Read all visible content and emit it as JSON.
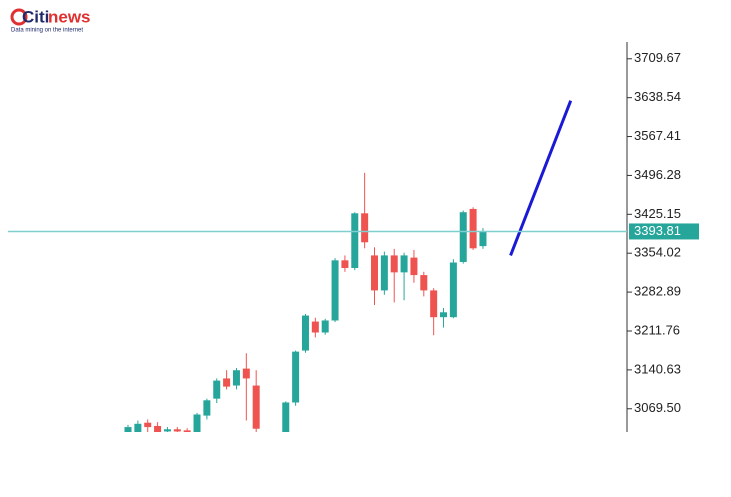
{
  "logo": {
    "brand": "Citi",
    "suffix": "news",
    "tagline": "Data mining on the internet"
  },
  "chart_data": {
    "type": "candlestick",
    "open": [
      3020,
      3025,
      3044,
      3038,
      3028,
      3032,
      3030,
      3020,
      3057,
      3088,
      3125,
      3112,
      3143,
      3112,
      null,
      null,
      3026,
      3081,
      3176,
      3229,
      3209,
      3231,
      3341,
      3327,
      3427,
      3350,
      3286,
      3350,
      3319,
      3346,
      3314,
      3286,
      3237,
      3237,
      3338,
      3435,
      3367
    ],
    "high": [
      3040,
      3048,
      3050,
      3045,
      3036,
      3036,
      3034,
      3062,
      3088,
      3125,
      3140,
      3144,
      3171,
      3140,
      null,
      null,
      3083,
      3176,
      3243,
      3236,
      3234,
      3345,
      3350,
      3429,
      3501,
      3365,
      3357,
      3362,
      3355,
      3360,
      3320,
      3290,
      3254,
      3343,
      3432,
      3438,
      3400
    ],
    "low": [
      3010,
      3015,
      3020,
      3010,
      3020,
      3015,
      3010,
      3010,
      3050,
      3080,
      3105,
      3105,
      3048,
      3026,
      null,
      null,
      3020,
      3075,
      3172,
      3200,
      3205,
      3228,
      3320,
      3323,
      3363,
      3259,
      3278,
      3264,
      3268,
      3300,
      3275,
      3204,
      3218,
      3235,
      3335,
      3360,
      3362
    ],
    "close": [
      3036,
      3042,
      3036,
      3025,
      3032,
      3028,
      3026,
      3059,
      3085,
      3121,
      3110,
      3140,
      3125,
      3033,
      null,
      null,
      3081,
      3174,
      3240,
      3209,
      3231,
      3341,
      3327,
      3427,
      3374,
      3286,
      3350,
      3319,
      3350,
      3314,
      3286,
      3237,
      3246,
      3337,
      3429,
      3363,
      3393.81
    ],
    "up_color": "#26a69a",
    "down_color": "#ef5350",
    "current_price": 3393.81,
    "current_price_color": "#26a69a",
    "trend_line": {
      "x": [
        38.8,
        44.9
      ],
      "values": [
        3350,
        3633
      ],
      "color": "#1a1ad6"
    },
    "ylim": [
      3027,
      3744
    ],
    "yticks": [
      3709.67,
      3638.54,
      3567.41,
      3496.28,
      3425.15,
      3354.02,
      3282.89,
      3211.76,
      3140.63,
      {
        "value": 3069.5,
        "label": "3069.50"
      }
    ]
  }
}
